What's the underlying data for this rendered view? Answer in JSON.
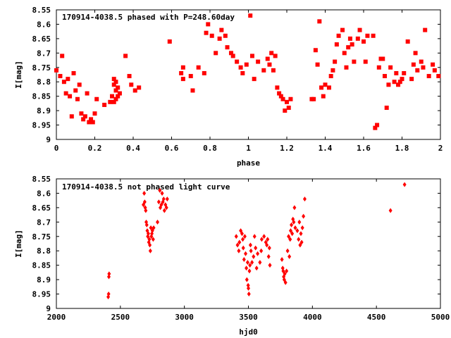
{
  "chart_data": [
    {
      "type": "scatter",
      "title": "170914-4038.5 phased with P=248.60day",
      "xlabel": "phase",
      "ylabel": "I[mag]",
      "xlim": [
        0,
        2
      ],
      "ylim": [
        9,
        8.55
      ],
      "y_inverted": true,
      "xticks": [
        "0",
        "0.2",
        "0.4",
        "0.6",
        "0.8",
        "1",
        "1.2",
        "1.4",
        "1.6",
        "1.8",
        "2"
      ],
      "yticks": [
        "8.55",
        "8.6",
        "8.65",
        "8.7",
        "8.75",
        "8.8",
        "8.85",
        "8.9",
        "8.95",
        "9"
      ],
      "marker_color": "#ff0000",
      "grid": false,
      "series": [
        {
          "x": [
            0.0,
            0.02,
            0.03,
            0.04,
            0.05,
            0.06,
            0.07,
            0.08,
            0.09,
            0.1,
            0.11,
            0.12,
            0.13,
            0.14,
            0.15,
            0.16,
            0.17,
            0.18,
            0.19,
            0.2,
            0.21,
            0.25,
            0.28,
            0.29,
            0.3,
            0.3,
            0.3,
            0.31,
            0.31,
            0.31,
            0.32,
            0.32,
            0.33,
            0.36,
            0.38,
            0.39,
            0.41,
            0.43,
            0.59,
            0.65,
            0.66,
            0.66,
            0.7,
            0.71,
            0.74,
            0.77,
            0.78,
            0.79,
            0.81,
            0.83,
            0.85,
            0.86,
            0.88,
            0.89,
            0.91,
            0.92,
            0.94,
            0.96,
            0.97,
            0.99,
            1.01,
            1.02,
            1.03,
            1.05,
            1.08,
            1.1,
            1.11,
            1.12,
            1.13,
            1.14,
            1.15,
            1.16,
            1.17,
            1.18,
            1.19,
            1.2,
            1.21,
            1.22,
            1.33,
            1.34,
            1.35,
            1.36,
            1.37,
            1.38,
            1.39,
            1.4,
            1.42,
            1.43,
            1.44,
            1.45,
            1.46,
            1.47,
            1.49,
            1.5,
            1.51,
            1.52,
            1.53,
            1.54,
            1.55,
            1.57,
            1.58,
            1.6,
            1.61,
            1.62,
            1.65,
            1.66,
            1.67,
            1.68,
            1.69,
            1.7,
            1.71,
            1.72,
            1.73,
            1.74,
            1.76,
            1.77,
            1.78,
            1.79,
            1.8,
            1.81,
            1.83,
            1.85,
            1.86,
            1.87,
            1.88,
            1.9,
            1.91,
            1.92,
            1.94,
            1.96,
            1.97,
            1.99
          ],
          "y": [
            8.76,
            8.78,
            8.71,
            8.8,
            8.84,
            8.79,
            8.85,
            8.92,
            8.77,
            8.83,
            8.86,
            8.81,
            8.91,
            8.93,
            8.92,
            8.84,
            8.94,
            8.93,
            8.94,
            8.91,
            8.86,
            8.88,
            8.87,
            8.85,
            8.79,
            8.81,
            8.87,
            8.8,
            8.83,
            8.86,
            8.82,
            8.85,
            8.84,
            8.71,
            8.78,
            8.81,
            8.83,
            8.82,
            8.66,
            8.77,
            8.79,
            8.75,
            8.78,
            8.83,
            8.75,
            8.77,
            8.63,
            8.6,
            8.64,
            8.7,
            8.65,
            8.62,
            8.64,
            8.68,
            8.7,
            8.71,
            8.73,
            8.75,
            8.77,
            8.74,
            8.57,
            8.71,
            8.79,
            8.73,
            8.76,
            8.72,
            8.74,
            8.7,
            8.76,
            8.71,
            8.82,
            8.84,
            8.85,
            8.86,
            8.9,
            8.87,
            8.89,
            8.86,
            8.86,
            8.86,
            8.69,
            8.74,
            8.59,
            8.82,
            8.85,
            8.81,
            8.82,
            8.78,
            8.76,
            8.73,
            8.67,
            8.64,
            8.62,
            8.7,
            8.75,
            8.68,
            8.65,
            8.67,
            8.73,
            8.65,
            8.62,
            8.66,
            8.73,
            8.64,
            8.64,
            8.96,
            8.95,
            8.75,
            8.72,
            8.72,
            8.78,
            8.89,
            8.81,
            8.75,
            8.8,
            8.77,
            8.81,
            8.8,
            8.79,
            8.77,
            8.66,
            8.79,
            8.74,
            8.7,
            8.76,
            8.73,
            8.75,
            8.62,
            8.78,
            8.74,
            8.76,
            8.78
          ]
        }
      ]
    },
    {
      "type": "scatter",
      "title": "170914-4038.5 not phased light curve",
      "xlabel": "hjd0",
      "ylabel": "I[mag]",
      "xlim": [
        2000,
        5000
      ],
      "ylim": [
        9,
        8.55
      ],
      "y_inverted": true,
      "xticks": [
        "2000",
        "2500",
        "3000",
        "3500",
        "4000",
        "4500",
        "5000"
      ],
      "yticks": [
        "8.55",
        "8.6",
        "8.65",
        "8.7",
        "8.75",
        "8.8",
        "8.85",
        "8.9",
        "8.95",
        "9"
      ],
      "marker_color": "#ff0000",
      "grid": false,
      "series": [
        {
          "x": [
            2405,
            2408,
            2410,
            2412,
            2680,
            2686,
            2690,
            2694,
            2698,
            2702,
            2706,
            2710,
            2714,
            2718,
            2722,
            2726,
            2730,
            2734,
            2738,
            2742,
            2746,
            2750,
            2756,
            2760,
            2790,
            2800,
            2808,
            2812,
            2820,
            2826,
            2832,
            2838,
            2844,
            2852,
            2860,
            2866,
            3405,
            3415,
            3425,
            3430,
            3440,
            3450,
            3456,
            3460,
            3466,
            3472,
            3478,
            3484,
            3488,
            3494,
            3498,
            3500,
            3504,
            3508,
            3512,
            3516,
            3520,
            3528,
            3540,
            3548,
            3556,
            3564,
            3572,
            3590,
            3600,
            3604,
            3622,
            3636,
            3644,
            3650,
            3658,
            3664,
            3668,
            3762,
            3768,
            3772,
            3776,
            3780,
            3784,
            3790,
            3798,
            3806,
            3814,
            3820,
            3826,
            3830,
            3836,
            3842,
            3848,
            3854,
            3860,
            3866,
            3882,
            3892,
            3898,
            3904,
            3910,
            3916,
            3922,
            3930,
            3940,
            4610,
            4720
          ],
          "y": [
            8.96,
            8.95,
            8.89,
            8.88,
            8.64,
            8.6,
            8.63,
            8.65,
            8.66,
            8.7,
            8.71,
            8.73,
            8.75,
            8.74,
            8.77,
            8.76,
            8.78,
            8.8,
            8.72,
            8.75,
            8.74,
            8.73,
            8.76,
            8.72,
            8.7,
            8.63,
            8.59,
            8.65,
            8.64,
            8.6,
            8.63,
            8.62,
            8.66,
            8.64,
            8.65,
            8.62,
            8.75,
            8.78,
            8.8,
            8.77,
            8.73,
            8.74,
            8.76,
            8.79,
            8.83,
            8.75,
            8.81,
            8.86,
            8.9,
            8.84,
            8.92,
            8.93,
            8.95,
            8.87,
            8.85,
            8.78,
            8.8,
            8.84,
            8.82,
            8.75,
            8.79,
            8.86,
            8.81,
            8.84,
            8.8,
            8.76,
            8.75,
            8.77,
            8.78,
            8.76,
            8.82,
            8.79,
            8.85,
            8.83,
            8.86,
            8.87,
            8.89,
            8.9,
            8.88,
            8.91,
            8.87,
            8.8,
            8.75,
            8.82,
            8.76,
            8.73,
            8.71,
            8.74,
            8.69,
            8.7,
            8.65,
            8.72,
            8.73,
            8.76,
            8.7,
            8.78,
            8.74,
            8.77,
            8.72,
            8.68,
            8.62,
            8.66,
            8.57
          ]
        }
      ]
    }
  ]
}
